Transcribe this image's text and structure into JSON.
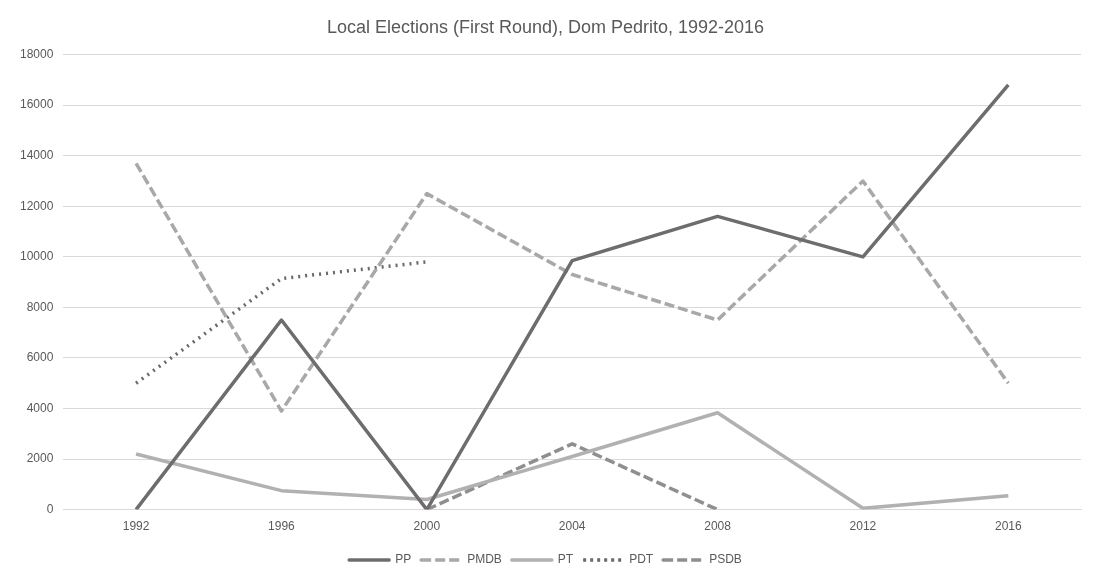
{
  "chart_data": {
    "type": "line",
    "title": "Local Elections (First Round), Dom Pedrito, 1992-2016",
    "categories": [
      "1992",
      "1996",
      "2000",
      "2004",
      "2008",
      "2012",
      "2016"
    ],
    "series": [
      {
        "name": "PP",
        "color": "#6f6c6c",
        "line_style": "solid",
        "values": [
          0,
          7500,
          0,
          9850,
          11600,
          10000,
          16800
        ]
      },
      {
        "name": "PMDB",
        "color": "#a8a8a8",
        "line_style": "dashed",
        "values": [
          13700,
          3900,
          12500,
          9300,
          7500,
          13000,
          5000
        ]
      },
      {
        "name": "PT",
        "color": "#b2b0b0",
        "line_style": "solid",
        "values": [
          2200,
          750,
          400,
          2100,
          3830,
          50,
          550
        ]
      },
      {
        "name": "PDT",
        "color": "#6a6868",
        "line_style": "dotted",
        "values": [
          5000,
          9140,
          9800,
          null,
          null,
          null,
          null
        ]
      },
      {
        "name": "PSDB",
        "color": "#8f8f8f",
        "line_style": "dashed",
        "values": [
          null,
          null,
          0,
          2600,
          0,
          null,
          null
        ]
      }
    ],
    "ylim": [
      0,
      18000
    ],
    "yticks": [
      0,
      2000,
      4000,
      6000,
      8000,
      10000,
      12000,
      14000,
      16000,
      18000
    ],
    "grid": "y",
    "legend": "bottom",
    "marker": "none"
  }
}
